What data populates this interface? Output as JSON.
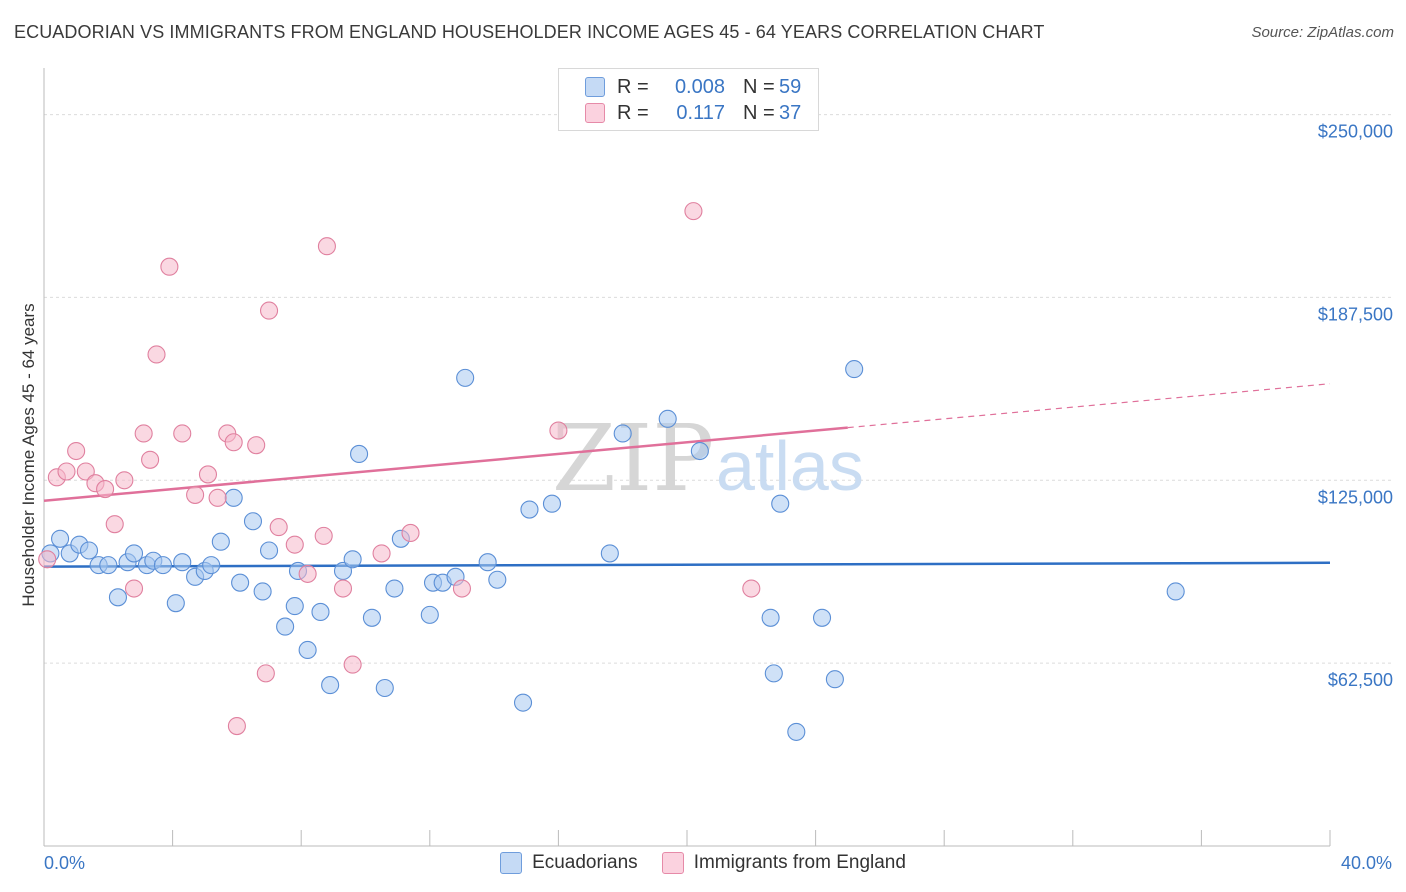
{
  "title": "ECUADORIAN VS IMMIGRANTS FROM ENGLAND HOUSEHOLDER INCOME AGES 45 - 64 YEARS CORRELATION CHART",
  "source": "Source: ZipAtlas.com",
  "watermark": {
    "zip": "ZIP",
    "atlas": "atlas"
  },
  "legend": {
    "rows": [
      {
        "r_label": "R =",
        "r_value": "0.008",
        "n_label": "N =",
        "n_value": "59"
      },
      {
        "r_label": "R =",
        "r_value": "0.117",
        "n_label": "N =",
        "n_value": "37"
      }
    ]
  },
  "colors": {
    "blue_fill": "#a8c8f0",
    "blue_stroke": "#5b8fd6",
    "blue_line": "#2e6fc4",
    "pink_fill": "#f6b8cb",
    "pink_stroke": "#e0809f",
    "pink_line": "#e0709a",
    "axis_label": "#3a76c4",
    "grid": "#dcdcdc"
  },
  "chart_data": {
    "type": "scatter",
    "ylabel": "Householder Income Ages 45 - 64 years",
    "xlim": [
      0,
      40
    ],
    "ylim": [
      0,
      262500
    ],
    "x_tick_labels": [
      "0.0%",
      "40.0%"
    ],
    "y_ticks": [
      62500,
      125000,
      187500,
      250000
    ],
    "y_tick_labels": [
      "$62,500",
      "$125,000",
      "$187,500",
      "$250,000"
    ],
    "series": [
      {
        "name": "Ecuadorians",
        "color": "#a8c8f0",
        "points": [
          [
            0.2,
            100000
          ],
          [
            0.5,
            105000
          ],
          [
            0.8,
            100000
          ],
          [
            1.1,
            103000
          ],
          [
            1.4,
            101000
          ],
          [
            1.7,
            96000
          ],
          [
            2.0,
            96000
          ],
          [
            2.3,
            85000
          ],
          [
            2.6,
            97000
          ],
          [
            2.8,
            100000
          ],
          [
            3.2,
            96000
          ],
          [
            3.4,
            97500
          ],
          [
            3.7,
            96000
          ],
          [
            4.1,
            83000
          ],
          [
            4.3,
            97000
          ],
          [
            4.7,
            92000
          ],
          [
            5.0,
            94000
          ],
          [
            5.2,
            96000
          ],
          [
            5.5,
            104000
          ],
          [
            5.9,
            119000
          ],
          [
            6.1,
            90000
          ],
          [
            6.5,
            111000
          ],
          [
            6.8,
            87000
          ],
          [
            7.0,
            101000
          ],
          [
            7.5,
            75000
          ],
          [
            7.8,
            82000
          ],
          [
            7.9,
            94000
          ],
          [
            8.6,
            80000
          ],
          [
            8.2,
            67000
          ],
          [
            8.9,
            55000
          ],
          [
            9.3,
            94000
          ],
          [
            9.6,
            98000
          ],
          [
            9.8,
            134000
          ],
          [
            10.2,
            78000
          ],
          [
            10.6,
            54000
          ],
          [
            10.9,
            88000
          ],
          [
            11.1,
            105000
          ],
          [
            12.0,
            79000
          ],
          [
            12.1,
            90000
          ],
          [
            12.4,
            90000
          ],
          [
            12.8,
            92000
          ],
          [
            13.1,
            160000
          ],
          [
            13.8,
            97000
          ],
          [
            14.1,
            91000
          ],
          [
            14.9,
            49000
          ],
          [
            15.1,
            115000
          ],
          [
            15.8,
            117000
          ],
          [
            17.6,
            100000
          ],
          [
            18.0,
            141000
          ],
          [
            19.4,
            146000
          ],
          [
            20.4,
            135000
          ],
          [
            22.6,
            78000
          ],
          [
            22.7,
            59000
          ],
          [
            22.9,
            117000
          ],
          [
            23.4,
            39000
          ],
          [
            24.2,
            78000
          ],
          [
            24.6,
            57000
          ],
          [
            25.2,
            163000
          ],
          [
            35.2,
            87000
          ]
        ]
      },
      {
        "name": "Immigrants from England",
        "color": "#f6b8cb",
        "points": [
          [
            0.4,
            126000
          ],
          [
            0.7,
            128000
          ],
          [
            1.0,
            135000
          ],
          [
            1.3,
            128000
          ],
          [
            1.6,
            124000
          ],
          [
            1.9,
            122000
          ],
          [
            2.2,
            110000
          ],
          [
            2.5,
            125000
          ],
          [
            2.8,
            88000
          ],
          [
            3.1,
            141000
          ],
          [
            3.3,
            132000
          ],
          [
            3.5,
            168000
          ],
          [
            3.9,
            198000
          ],
          [
            4.3,
            141000
          ],
          [
            4.7,
            120000
          ],
          [
            5.1,
            127000
          ],
          [
            5.4,
            119000
          ],
          [
            5.7,
            141000
          ],
          [
            5.9,
            138000
          ],
          [
            6.0,
            41000
          ],
          [
            6.6,
            137000
          ],
          [
            6.9,
            59000
          ],
          [
            7.0,
            183000
          ],
          [
            7.3,
            109000
          ],
          [
            7.8,
            103000
          ],
          [
            8.2,
            93000
          ],
          [
            8.7,
            106000
          ],
          [
            8.8,
            205000
          ],
          [
            9.3,
            88000
          ],
          [
            9.6,
            62000
          ],
          [
            10.5,
            100000
          ],
          [
            11.4,
            107000
          ],
          [
            13.0,
            88000
          ],
          [
            16.0,
            142000
          ],
          [
            20.2,
            217000
          ],
          [
            22.0,
            88000
          ],
          [
            0.1,
            98000
          ]
        ]
      }
    ],
    "trend_lines": [
      {
        "series": "Ecuadorians",
        "x": [
          0,
          40
        ],
        "y": [
          95500,
          96800
        ],
        "style": "solid"
      },
      {
        "series": "Immigrants from England",
        "x": [
          0,
          25
        ],
        "y": [
          118000,
          143000
        ],
        "style": "solid"
      },
      {
        "series": "Immigrants from England",
        "x": [
          25,
          40
        ],
        "y": [
          143000,
          158000
        ],
        "style": "dashed"
      }
    ]
  },
  "bottom_legend": [
    "Ecuadorians",
    "Immigrants from England"
  ]
}
